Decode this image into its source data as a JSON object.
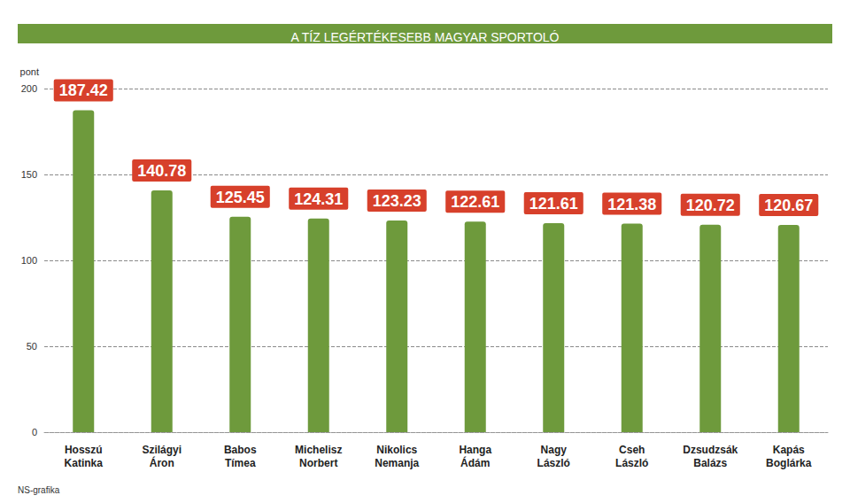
{
  "chart_data": {
    "type": "bar",
    "title": "A TÍZ LEGÉRTÉKESEBB MAGYAR SPORTOLÓ",
    "y_label": "pont",
    "source": "NS-grafika",
    "categories": [
      "Hosszú Katinka",
      "Szilágyi Áron",
      "Babos Tímea",
      "Michelisz Norbert",
      "Nikolics Nemanja",
      "Hanga Ádám",
      "Nagy László",
      "Cseh László",
      "Dzsudzsák Balázs",
      "Kapás Boglárka"
    ],
    "values": [
      187.42,
      140.78,
      125.45,
      124.31,
      123.23,
      122.61,
      121.61,
      121.38,
      120.72,
      120.67
    ],
    "color": "#6e9a3c",
    "ylim": [
      0,
      200
    ],
    "yticks": [
      0,
      50,
      100,
      150,
      200
    ],
    "grid": true,
    "data_labels": true
  }
}
